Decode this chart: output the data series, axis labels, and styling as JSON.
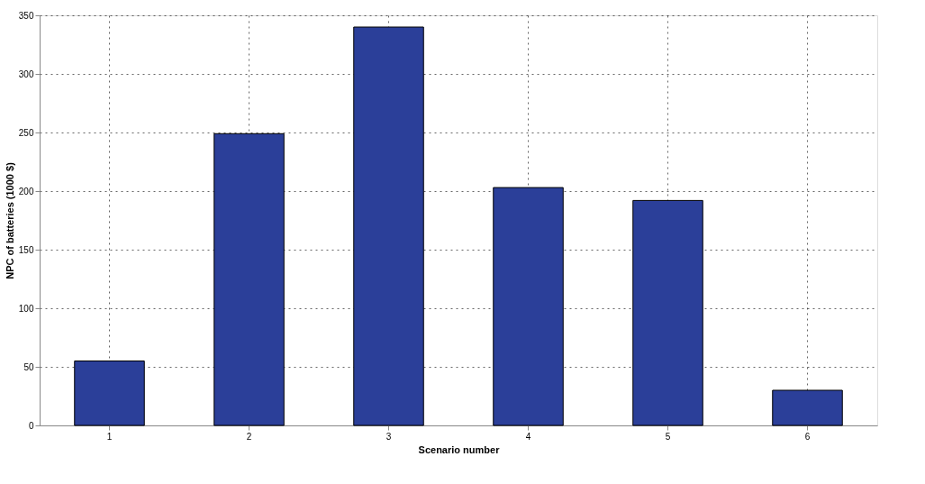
{
  "chart_data": {
    "type": "bar",
    "xlabel": "Scenario number",
    "ylabel": "NPC of batteries (1000 $)",
    "categories": [
      "1",
      "2",
      "3",
      "4",
      "5",
      "6"
    ],
    "values": [
      55,
      249,
      340,
      203,
      192,
      30
    ],
    "color": "#2b3f99",
    "ylim": [
      0,
      350
    ],
    "yticks": [
      0,
      50,
      100,
      150,
      200,
      250,
      300,
      350
    ],
    "grid": true
  }
}
